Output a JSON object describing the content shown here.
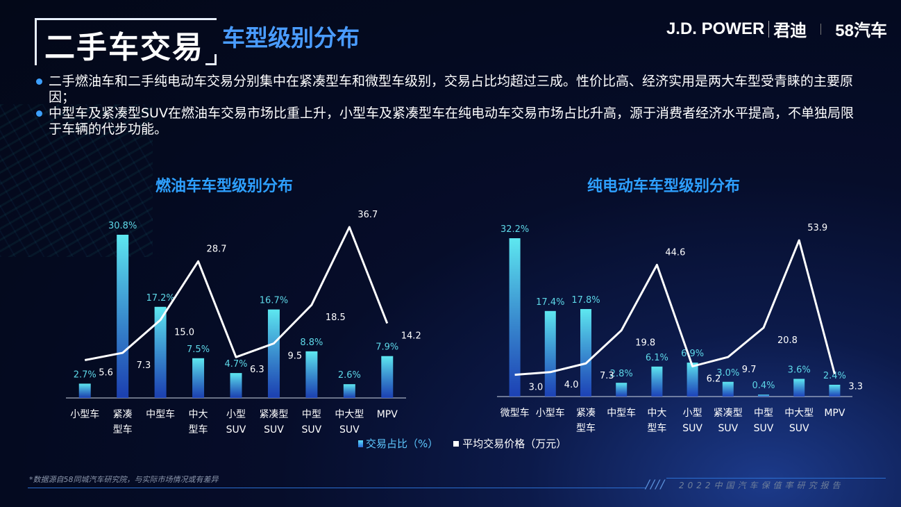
{
  "header": {
    "title": "二手车交易",
    "subtitle": "车型级别分布",
    "brand_jdp": "J.D. POWER",
    "brand_jundi": "君迪",
    "brand_58": "58汽车"
  },
  "bullets": [
    "二手燃油车和二手纯电动车交易分别集中在紧凑型车和微型车级别，交易占比均超过三成。性价比高、经济实用是两大车型受青睐的主要原因；",
    "中型车及紧凑型SUV在燃油车交易市场比重上升，小型车及紧凑型车在纯电动车交易市场占比升高，源于消费者经济水平提高，不单独局限于车辆的代步功能。"
  ],
  "legend": {
    "bar": "交易占比（%）",
    "line": "平均交易价格（万元）"
  },
  "footnote": "*数据源自58同城汽车研究院，与实际市场情况或有差异",
  "footer": "2022中国汽车保值率研究报告",
  "colors": {
    "accent": "#2ea0ff",
    "bar_top": "#5ee8f0",
    "bar_bottom": "#1f48c8",
    "line": "#ffffff"
  },
  "chart_data": [
    {
      "type": "bar",
      "title": "燃油车车型级别分布",
      "categories": [
        [
          "小型车"
        ],
        [
          "紧凑",
          "型车"
        ],
        [
          "中型车"
        ],
        [
          "中大",
          "型车"
        ],
        [
          "小型",
          "SUV"
        ],
        [
          "紧凑型",
          "SUV"
        ],
        [
          "中型",
          "SUV"
        ],
        [
          "中大型",
          "SUV"
        ],
        [
          "MPV"
        ]
      ],
      "series": [
        {
          "name": "交易占比（%）",
          "kind": "bar",
          "values": [
            2.7,
            30.8,
            17.2,
            7.5,
            4.7,
            16.7,
            8.8,
            2.6,
            7.9
          ],
          "labels": [
            "2.7%",
            "30.8%",
            "17.2%",
            "7.5%",
            "4.7%",
            "16.7%",
            "8.8%",
            "2.6%",
            "7.9%"
          ]
        },
        {
          "name": "平均交易价格（万元）",
          "kind": "line",
          "values": [
            5.6,
            7.3,
            15.0,
            28.7,
            6.3,
            9.5,
            18.5,
            36.7,
            14.2
          ],
          "labels": [
            "5.6",
            "7.3",
            "15.0",
            "28.7",
            "6.3",
            "9.5",
            "18.5",
            "36.7",
            "14.2"
          ]
        }
      ]
    },
    {
      "type": "bar",
      "title": "纯电动车车型级别分布",
      "categories": [
        [
          "微型车"
        ],
        [
          "小型车"
        ],
        [
          "紧凑",
          "型车"
        ],
        [
          "中型车"
        ],
        [
          "中大",
          "型车"
        ],
        [
          "小型",
          "SUV"
        ],
        [
          "紧凑型",
          "SUV"
        ],
        [
          "中型",
          "SUV"
        ],
        [
          "中大型",
          "SUV"
        ],
        [
          "MPV"
        ]
      ],
      "series": [
        {
          "name": "交易占比（%）",
          "kind": "bar",
          "values": [
            32.2,
            17.4,
            17.8,
            2.8,
            6.1,
            6.9,
            3.0,
            0.4,
            3.6,
            2.4
          ],
          "labels": [
            "32.2%",
            "17.4%",
            "17.8%",
            "2.8%",
            "6.1%",
            "6.9%",
            "3.0%",
            "0.4%",
            "3.6%",
            "2.4%"
          ]
        },
        {
          "name": "平均交易价格（万元）",
          "kind": "line",
          "values": [
            3.0,
            4.0,
            7.3,
            19.8,
            44.6,
            6.2,
            9.7,
            20.8,
            53.9,
            3.3
          ],
          "labels": [
            "3.0",
            "4.0",
            "7.3",
            "19.8",
            "44.6",
            "6.2",
            "9.7",
            "20.8",
            "53.9",
            "3.3"
          ]
        }
      ]
    }
  ]
}
